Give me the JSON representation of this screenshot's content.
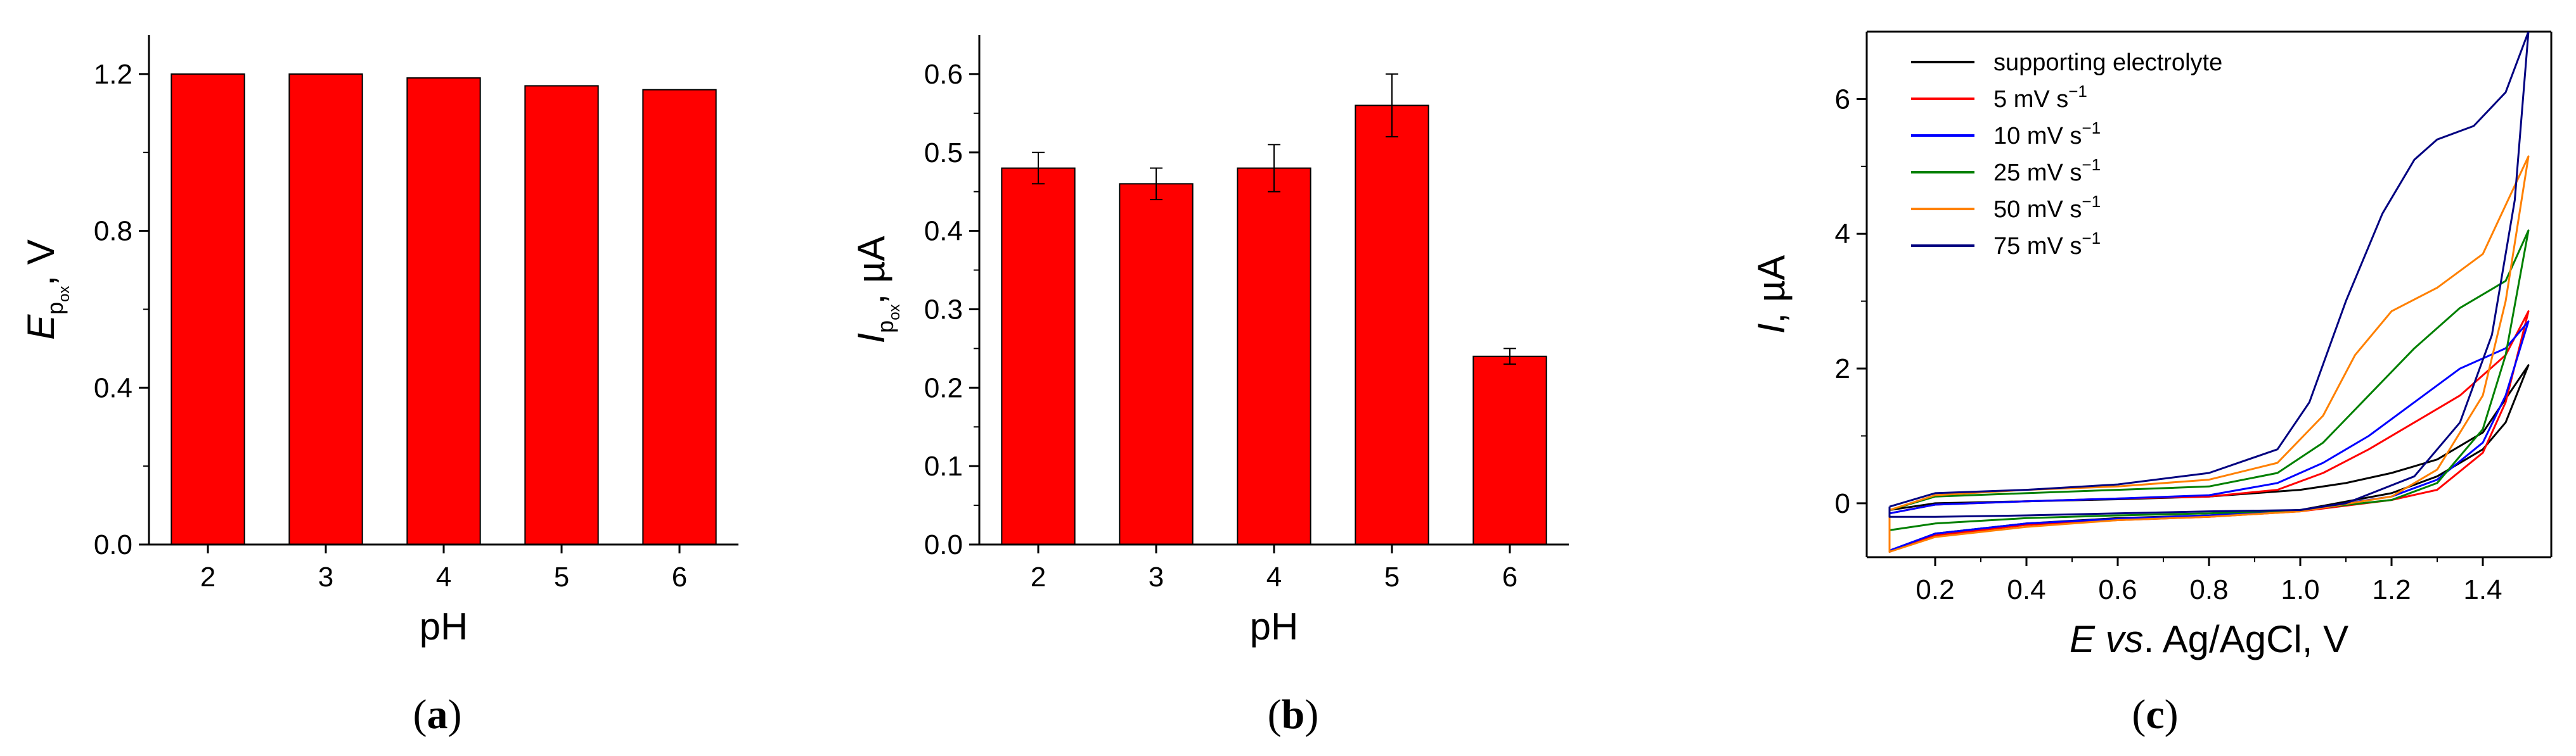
{
  "chart_data": [
    {
      "type": "bar",
      "panel_label": "(a)",
      "categories": [
        "2",
        "3",
        "4",
        "5",
        "6"
      ],
      "values": [
        1.2,
        1.2,
        1.19,
        1.17,
        1.16
      ],
      "xlabel": "pH",
      "ylabel": {
        "main": "E",
        "sub": "p",
        "subsub": "ox",
        "rest": ", V"
      },
      "ylim": [
        0,
        1.3
      ],
      "yticks": [
        "0.0",
        "0.4",
        "0.8",
        "1.2"
      ],
      "bar_color": "#ff0000"
    },
    {
      "type": "bar",
      "panel_label": "(b)",
      "categories": [
        "2",
        "3",
        "4",
        "5",
        "6"
      ],
      "values": [
        0.48,
        0.46,
        0.48,
        0.56,
        0.24
      ],
      "errors": [
        0.02,
        0.02,
        0.03,
        0.04,
        0.01
      ],
      "xlabel": "pH",
      "ylabel": {
        "main": "I",
        "sub": "p",
        "subsub": "ox",
        "rest": ", µA"
      },
      "ylim": [
        0,
        0.65
      ],
      "yticks": [
        "0.0",
        "0.1",
        "0.2",
        "0.3",
        "0.4",
        "0.5",
        "0.6"
      ],
      "bar_color": "#ff0000"
    },
    {
      "type": "line",
      "panel_label": "(c)",
      "xlabel": {
        "main": "E",
        "italic2": "vs",
        "rest": ". Ag/AgCl, V"
      },
      "ylabel": {
        "main": "I",
        "rest": ", µA"
      },
      "xlim": [
        0.05,
        1.55
      ],
      "ylim": [
        -0.8,
        7.0
      ],
      "xticks": [
        "0.2",
        "0.4",
        "0.6",
        "0.8",
        "1.0",
        "1.2",
        "1.4"
      ],
      "yticks": [
        "0",
        "2",
        "4",
        "6"
      ],
      "legend_position": "top-left",
      "series": [
        {
          "name": "supporting electrolyte",
          "unit": "",
          "color": "#000000",
          "forward": [
            [
              0.1,
              -0.1
            ],
            [
              0.2,
              0.0
            ],
            [
              0.4,
              0.03
            ],
            [
              0.6,
              0.06
            ],
            [
              0.8,
              0.1
            ],
            [
              1.0,
              0.2
            ],
            [
              1.1,
              0.3
            ],
            [
              1.2,
              0.45
            ],
            [
              1.3,
              0.65
            ],
            [
              1.4,
              1.05
            ],
            [
              1.5,
              2.05
            ]
          ],
          "reverse": [
            [
              1.5,
              2.05
            ],
            [
              1.45,
              1.2
            ],
            [
              1.4,
              0.8
            ],
            [
              1.3,
              0.4
            ],
            [
              1.2,
              0.15
            ],
            [
              1.0,
              -0.1
            ],
            [
              0.8,
              -0.18
            ],
            [
              0.6,
              -0.22
            ],
            [
              0.4,
              -0.3
            ],
            [
              0.2,
              -0.45
            ],
            [
              0.1,
              -0.72
            ]
          ]
        },
        {
          "name": "5 mV s",
          "unit": "−1",
          "color": "#ff0000",
          "forward": [
            [
              0.1,
              -0.15
            ],
            [
              0.2,
              -0.02
            ],
            [
              0.4,
              0.03
            ],
            [
              0.6,
              0.07
            ],
            [
              0.8,
              0.1
            ],
            [
              0.95,
              0.2
            ],
            [
              1.05,
              0.45
            ],
            [
              1.15,
              0.8
            ],
            [
              1.25,
              1.2
            ],
            [
              1.35,
              1.6
            ],
            [
              1.45,
              2.2
            ],
            [
              1.5,
              2.85
            ]
          ],
          "reverse": [
            [
              1.5,
              2.85
            ],
            [
              1.45,
              1.5
            ],
            [
              1.4,
              0.75
            ],
            [
              1.3,
              0.2
            ],
            [
              1.2,
              0.05
            ],
            [
              1.0,
              -0.12
            ],
            [
              0.8,
              -0.2
            ],
            [
              0.6,
              -0.25
            ],
            [
              0.4,
              -0.32
            ],
            [
              0.2,
              -0.48
            ],
            [
              0.1,
              -0.72
            ]
          ]
        },
        {
          "name": "10 mV s",
          "unit": "−1",
          "color": "#0000ff",
          "forward": [
            [
              0.1,
              -0.15
            ],
            [
              0.2,
              -0.02
            ],
            [
              0.4,
              0.03
            ],
            [
              0.6,
              0.07
            ],
            [
              0.8,
              0.12
            ],
            [
              0.95,
              0.3
            ],
            [
              1.05,
              0.6
            ],
            [
              1.15,
              1.0
            ],
            [
              1.25,
              1.5
            ],
            [
              1.35,
              2.0
            ],
            [
              1.45,
              2.3
            ],
            [
              1.5,
              2.7
            ]
          ],
          "reverse": [
            [
              1.5,
              2.7
            ],
            [
              1.45,
              1.6
            ],
            [
              1.4,
              0.9
            ],
            [
              1.3,
              0.35
            ],
            [
              1.2,
              0.1
            ],
            [
              1.0,
              -0.1
            ],
            [
              0.8,
              -0.18
            ],
            [
              0.6,
              -0.23
            ],
            [
              0.4,
              -0.3
            ],
            [
              0.2,
              -0.45
            ],
            [
              0.1,
              -0.7
            ]
          ]
        },
        {
          "name": "25 mV s",
          "unit": "−1",
          "color": "#008000",
          "forward": [
            [
              0.1,
              -0.1
            ],
            [
              0.2,
              0.1
            ],
            [
              0.4,
              0.15
            ],
            [
              0.6,
              0.2
            ],
            [
              0.8,
              0.25
            ],
            [
              0.95,
              0.45
            ],
            [
              1.05,
              0.9
            ],
            [
              1.15,
              1.6
            ],
            [
              1.25,
              2.3
            ],
            [
              1.35,
              2.9
            ],
            [
              1.45,
              3.3
            ],
            [
              1.5,
              4.05
            ]
          ],
          "reverse": [
            [
              1.5,
              4.05
            ],
            [
              1.45,
              2.2
            ],
            [
              1.4,
              1.1
            ],
            [
              1.3,
              0.3
            ],
            [
              1.2,
              0.05
            ],
            [
              1.0,
              -0.1
            ],
            [
              0.8,
              -0.15
            ],
            [
              0.6,
              -0.18
            ],
            [
              0.4,
              -0.22
            ],
            [
              0.2,
              -0.3
            ],
            [
              0.1,
              -0.4
            ]
          ]
        },
        {
          "name": "50 mV s",
          "unit": "−1",
          "color": "#ff8000",
          "forward": [
            [
              0.1,
              -0.1
            ],
            [
              0.2,
              0.12
            ],
            [
              0.4,
              0.2
            ],
            [
              0.6,
              0.25
            ],
            [
              0.8,
              0.35
            ],
            [
              0.95,
              0.6
            ],
            [
              1.05,
              1.3
            ],
            [
              1.12,
              2.2
            ],
            [
              1.2,
              2.85
            ],
            [
              1.3,
              3.2
            ],
            [
              1.4,
              3.7
            ],
            [
              1.5,
              5.15
            ]
          ],
          "reverse": [
            [
              1.5,
              5.15
            ],
            [
              1.45,
              3.0
            ],
            [
              1.4,
              1.6
            ],
            [
              1.3,
              0.5
            ],
            [
              1.2,
              0.1
            ],
            [
              1.0,
              -0.12
            ],
            [
              0.8,
              -0.2
            ],
            [
              0.6,
              -0.25
            ],
            [
              0.4,
              -0.35
            ],
            [
              0.2,
              -0.5
            ],
            [
              0.1,
              -0.72
            ]
          ]
        },
        {
          "name": "75 mV s",
          "unit": "−1",
          "color": "#000080",
          "forward": [
            [
              0.1,
              -0.05
            ],
            [
              0.2,
              0.15
            ],
            [
              0.4,
              0.2
            ],
            [
              0.6,
              0.28
            ],
            [
              0.8,
              0.45
            ],
            [
              0.95,
              0.8
            ],
            [
              1.02,
              1.5
            ],
            [
              1.1,
              3.0
            ],
            [
              1.18,
              4.3
            ],
            [
              1.25,
              5.1
            ],
            [
              1.3,
              5.4
            ],
            [
              1.38,
              5.6
            ],
            [
              1.45,
              6.1
            ],
            [
              1.5,
              7.0
            ]
          ],
          "reverse": [
            [
              1.5,
              7.0
            ],
            [
              1.47,
              4.5
            ],
            [
              1.42,
              2.5
            ],
            [
              1.35,
              1.2
            ],
            [
              1.25,
              0.4
            ],
            [
              1.1,
              0.0
            ],
            [
              1.0,
              -0.1
            ],
            [
              0.8,
              -0.12
            ],
            [
              0.6,
              -0.15
            ],
            [
              0.4,
              -0.18
            ],
            [
              0.2,
              -0.2
            ],
            [
              0.1,
              -0.2
            ]
          ]
        }
      ]
    }
  ]
}
